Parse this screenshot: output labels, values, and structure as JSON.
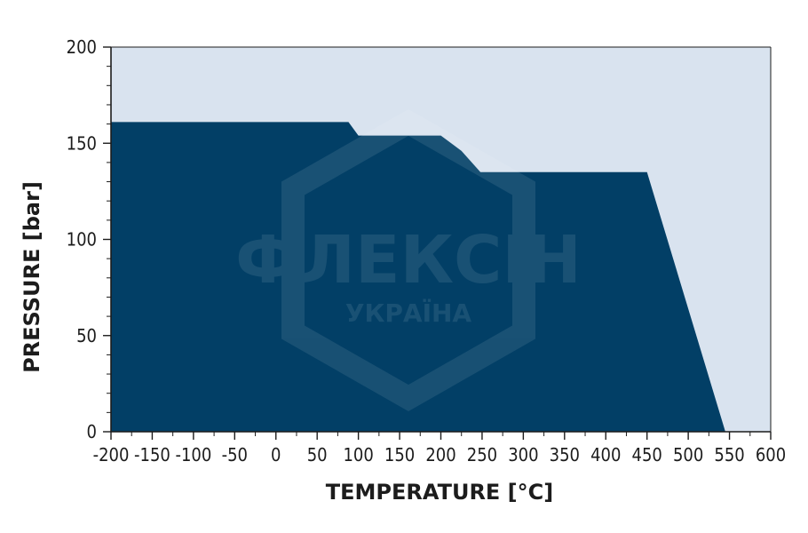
{
  "chart_data": {
    "type": "area",
    "xlabel": "TEMPERATURE [°C]",
    "ylabel": "PRESSURE [bar]",
    "xlim": [
      -200,
      600
    ],
    "ylim": [
      0,
      200
    ],
    "x_ticks": [
      -200,
      -150,
      -100,
      -50,
      0,
      50,
      100,
      150,
      200,
      250,
      300,
      350,
      400,
      450,
      500,
      550,
      600
    ],
    "y_ticks": [
      0,
      50,
      100,
      150,
      200
    ],
    "x_tick_labels": [
      "-200",
      "-150",
      "-100",
      "-50",
      "0",
      "50",
      "100",
      "150",
      "200",
      "250",
      "300",
      "350",
      "400",
      "450",
      "500",
      "550",
      "600"
    ],
    "y_tick_labels": [
      "0",
      "50",
      "100",
      "150",
      "200"
    ],
    "series": [
      {
        "x": [
          -200,
          88,
          100,
          200,
          225,
          248,
          450,
          545
        ],
        "y": [
          161,
          161,
          154,
          154,
          146,
          135,
          135,
          0
        ]
      }
    ],
    "grid": false,
    "colors": {
      "fill": "#023f66",
      "background": "#d9e3ef",
      "axis": "#1c1c1c"
    }
  },
  "watermark": {
    "brand": "ФЛЕКСІН",
    "sub": "УКРАЇНА"
  }
}
